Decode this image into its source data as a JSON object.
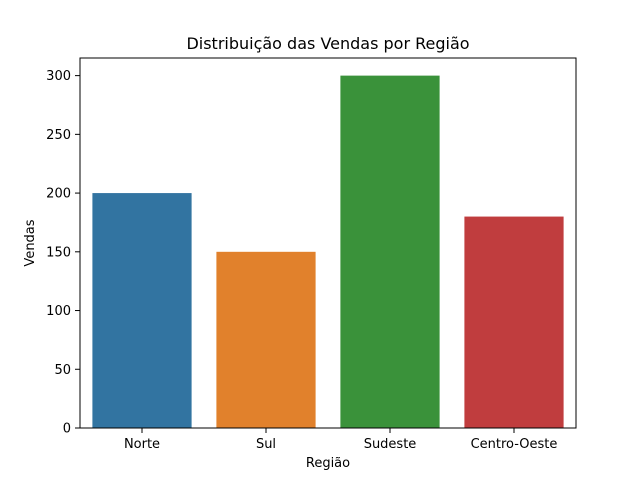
{
  "chart_data": {
    "type": "bar",
    "title": "Distribuição das Vendas por Região",
    "xlabel": "Região",
    "ylabel": "Vendas",
    "categories": [
      "Norte",
      "Sul",
      "Sudeste",
      "Centro-Oeste"
    ],
    "values": [
      200,
      150,
      300,
      180
    ],
    "colors": [
      "#3274a1",
      "#e1812c",
      "#3a923a",
      "#c03d3e"
    ],
    "ylim": [
      0,
      315
    ],
    "yticks": [
      0,
      50,
      100,
      150,
      200,
      250,
      300
    ],
    "grid": false,
    "legend": "none"
  }
}
